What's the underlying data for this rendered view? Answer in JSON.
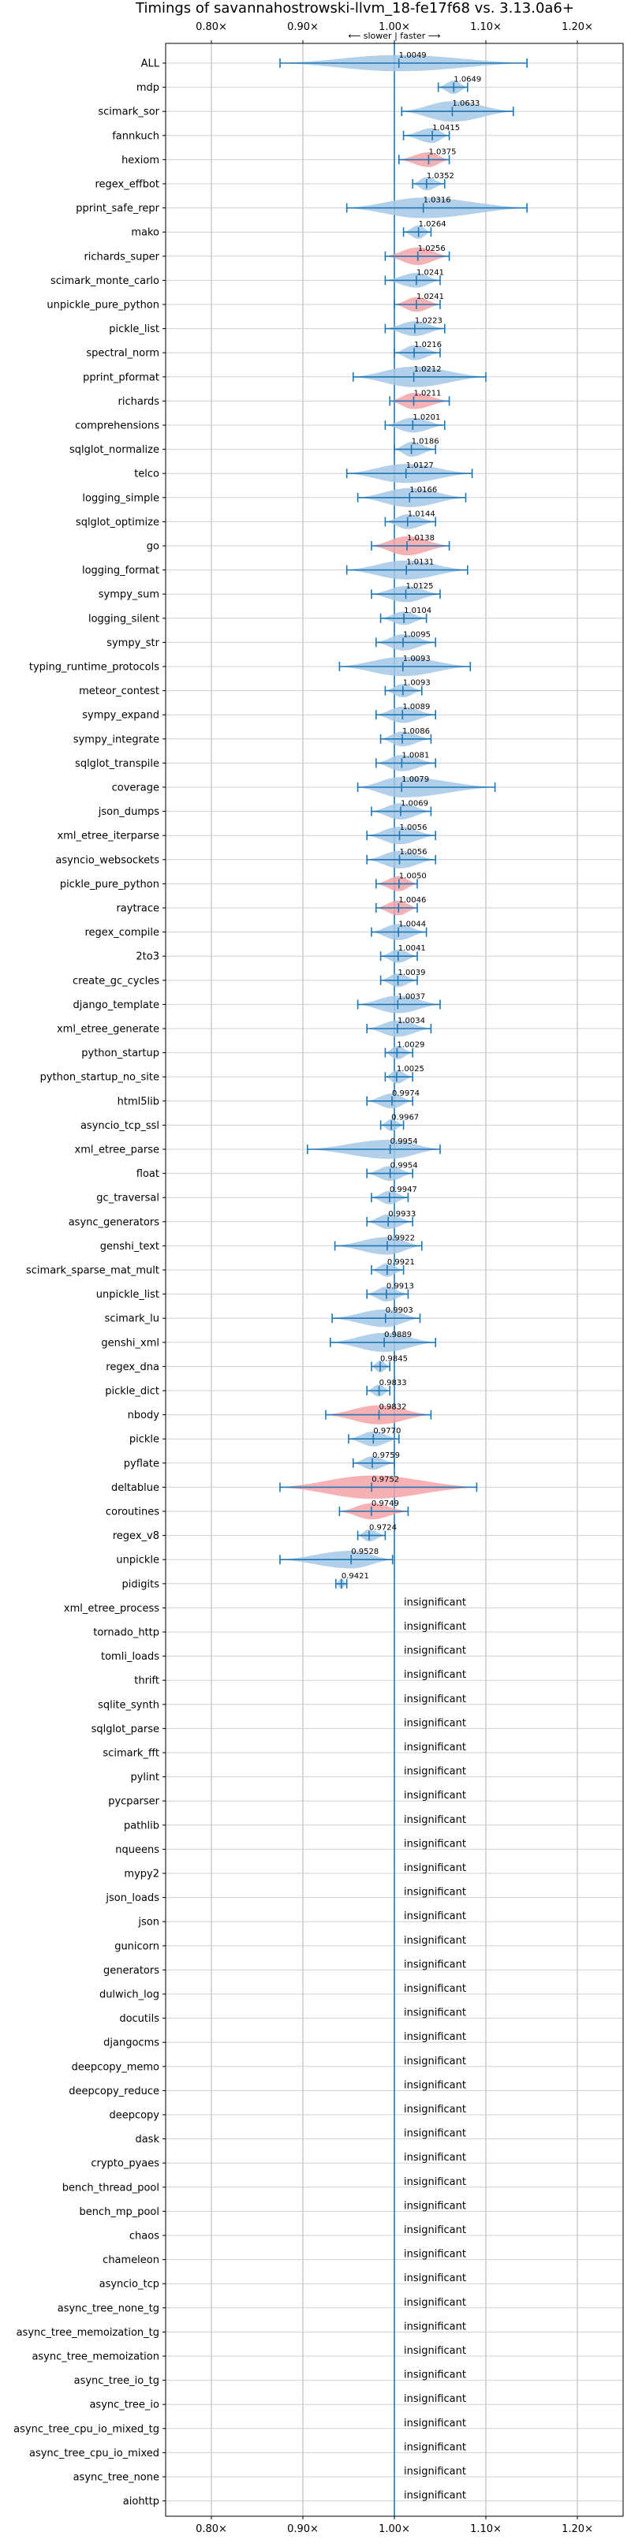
{
  "chart_data": {
    "type": "violin",
    "title": "Timings of savannahostrowski-llvm_18-fe17f68 vs. 3.13.0a6+",
    "direction_note": "⟵ slower | faster ⟶",
    "xlim": [
      0.75,
      1.25
    ],
    "xticks": [
      0.8,
      0.9,
      1.0,
      1.1,
      1.2
    ],
    "xtick_labels": [
      "0.80×",
      "0.90×",
      "1.00×",
      "1.10×",
      "1.20×"
    ],
    "grid": true,
    "colors": {
      "faster": "#1f77b4",
      "faster_fill": "#a6c8e6",
      "slower_fill": "#f5a3a8"
    },
    "insignificant_label": "insignificant",
    "benchmarks": [
      {
        "name": "ALL",
        "value": 1.0049,
        "label": "1.0049",
        "lo": 0.875,
        "hi": 1.145,
        "w": 0.7,
        "color": "blue"
      },
      {
        "name": "mdp",
        "value": 1.0649,
        "label": "1.0649",
        "lo": 1.048,
        "hi": 1.08,
        "w": 0.5,
        "color": "blue"
      },
      {
        "name": "scimark_sor",
        "value": 1.0633,
        "label": "1.0633",
        "lo": 1.008,
        "hi": 1.13,
        "w": 1.0,
        "color": "blue"
      },
      {
        "name": "fannkuch",
        "value": 1.0415,
        "label": "1.0415",
        "lo": 1.01,
        "hi": 1.06,
        "w": 0.6,
        "color": "blue"
      },
      {
        "name": "hexiom",
        "value": 1.0375,
        "label": "1.0375",
        "lo": 1.005,
        "hi": 1.06,
        "w": 0.6,
        "color": "red"
      },
      {
        "name": "regex_effbot",
        "value": 1.0352,
        "label": "1.0352",
        "lo": 1.02,
        "hi": 1.055,
        "w": 0.5,
        "color": "blue"
      },
      {
        "name": "pprint_safe_repr",
        "value": 1.0316,
        "label": "1.0316",
        "lo": 0.948,
        "hi": 1.145,
        "w": 1.0,
        "color": "blue"
      },
      {
        "name": "mako",
        "value": 1.0264,
        "label": "1.0264",
        "lo": 1.01,
        "hi": 1.04,
        "w": 0.5,
        "color": "blue"
      },
      {
        "name": "richards_super",
        "value": 1.0256,
        "label": "1.0256",
        "lo": 0.99,
        "hi": 1.06,
        "w": 0.8,
        "color": "red"
      },
      {
        "name": "scimark_monte_carlo",
        "value": 1.0241,
        "label": "1.0241",
        "lo": 0.99,
        "hi": 1.05,
        "w": 0.6,
        "color": "blue"
      },
      {
        "name": "unpickle_pure_python",
        "value": 1.0241,
        "label": "1.0241",
        "lo": 1.0,
        "hi": 1.05,
        "w": 0.6,
        "color": "red"
      },
      {
        "name": "pickle_list",
        "value": 1.0223,
        "label": "1.0223",
        "lo": 0.99,
        "hi": 1.055,
        "w": 0.6,
        "color": "blue"
      },
      {
        "name": "spectral_norm",
        "value": 1.0216,
        "label": "1.0216",
        "lo": 1.0,
        "hi": 1.05,
        "w": 0.6,
        "color": "blue"
      },
      {
        "name": "pprint_pformat",
        "value": 1.0212,
        "label": "1.0212",
        "lo": 0.955,
        "hi": 1.1,
        "w": 1.0,
        "color": "blue"
      },
      {
        "name": "richards",
        "value": 1.0211,
        "label": "1.0211",
        "lo": 0.995,
        "hi": 1.06,
        "w": 0.7,
        "color": "red"
      },
      {
        "name": "comprehensions",
        "value": 1.0201,
        "label": "1.0201",
        "lo": 0.99,
        "hi": 1.055,
        "w": 0.6,
        "color": "blue"
      },
      {
        "name": "sqlglot_normalize",
        "value": 1.0186,
        "label": "1.0186",
        "lo": 1.0,
        "hi": 1.045,
        "w": 0.6,
        "color": "blue"
      },
      {
        "name": "telco",
        "value": 1.0127,
        "label": "1.0127",
        "lo": 0.948,
        "hi": 1.085,
        "w": 0.9,
        "color": "blue"
      },
      {
        "name": "logging_simple",
        "value": 1.0166,
        "label": "1.0166",
        "lo": 0.96,
        "hi": 1.078,
        "w": 0.9,
        "color": "blue"
      },
      {
        "name": "sqlglot_optimize",
        "value": 1.0144,
        "label": "1.0144",
        "lo": 0.99,
        "hi": 1.045,
        "w": 0.6,
        "color": "blue"
      },
      {
        "name": "go",
        "value": 1.0138,
        "label": "1.0138",
        "lo": 0.975,
        "hi": 1.06,
        "w": 0.9,
        "color": "red"
      },
      {
        "name": "logging_format",
        "value": 1.0131,
        "label": "1.0131",
        "lo": 0.948,
        "hi": 1.08,
        "w": 0.9,
        "color": "blue"
      },
      {
        "name": "sympy_sum",
        "value": 1.0125,
        "label": "1.0125",
        "lo": 0.975,
        "hi": 1.05,
        "w": 0.7,
        "color": "blue"
      },
      {
        "name": "logging_silent",
        "value": 1.0104,
        "label": "1.0104",
        "lo": 0.985,
        "hi": 1.035,
        "w": 0.5,
        "color": "blue"
      },
      {
        "name": "sympy_str",
        "value": 1.0095,
        "label": "1.0095",
        "lo": 0.98,
        "hi": 1.045,
        "w": 0.7,
        "color": "blue"
      },
      {
        "name": "typing_runtime_protocols",
        "value": 1.0093,
        "label": "1.0093",
        "lo": 0.94,
        "hi": 1.083,
        "w": 0.9,
        "color": "blue"
      },
      {
        "name": "meteor_contest",
        "value": 1.0093,
        "label": "1.0093",
        "lo": 0.99,
        "hi": 1.03,
        "w": 0.5,
        "color": "blue"
      },
      {
        "name": "sympy_expand",
        "value": 1.0089,
        "label": "1.0089",
        "lo": 0.98,
        "hi": 1.045,
        "w": 0.7,
        "color": "blue"
      },
      {
        "name": "sympy_integrate",
        "value": 1.0086,
        "label": "1.0086",
        "lo": 0.985,
        "hi": 1.04,
        "w": 0.6,
        "color": "blue"
      },
      {
        "name": "sqlglot_transpile",
        "value": 1.0081,
        "label": "1.0081",
        "lo": 0.98,
        "hi": 1.045,
        "w": 0.7,
        "color": "blue"
      },
      {
        "name": "coverage",
        "value": 1.0079,
        "label": "1.0079",
        "lo": 0.96,
        "hi": 1.11,
        "w": 1.0,
        "color": "blue"
      },
      {
        "name": "json_dumps",
        "value": 1.0069,
        "label": "1.0069",
        "lo": 0.975,
        "hi": 1.04,
        "w": 0.7,
        "color": "blue"
      },
      {
        "name": "xml_etree_iterparse",
        "value": 1.0056,
        "label": "1.0056",
        "lo": 0.97,
        "hi": 1.045,
        "w": 0.8,
        "color": "blue"
      },
      {
        "name": "asyncio_websockets",
        "value": 1.0056,
        "label": "1.0056",
        "lo": 0.97,
        "hi": 1.045,
        "w": 0.8,
        "color": "blue"
      },
      {
        "name": "pickle_pure_python",
        "value": 1.005,
        "label": "1.0050",
        "lo": 0.98,
        "hi": 1.025,
        "w": 0.6,
        "color": "red"
      },
      {
        "name": "raytrace",
        "value": 1.0046,
        "label": "1.0046",
        "lo": 0.98,
        "hi": 1.025,
        "w": 0.6,
        "color": "red"
      },
      {
        "name": "regex_compile",
        "value": 1.0044,
        "label": "1.0044",
        "lo": 0.975,
        "hi": 1.035,
        "w": 0.7,
        "color": "blue"
      },
      {
        "name": "2to3",
        "value": 1.0041,
        "label": "1.0041",
        "lo": 0.985,
        "hi": 1.025,
        "w": 0.5,
        "color": "blue"
      },
      {
        "name": "create_gc_cycles",
        "value": 1.0039,
        "label": "1.0039",
        "lo": 0.985,
        "hi": 1.025,
        "w": 0.5,
        "color": "blue"
      },
      {
        "name": "django_template",
        "value": 1.0037,
        "label": "1.0037",
        "lo": 0.96,
        "hi": 1.05,
        "w": 0.8,
        "color": "blue"
      },
      {
        "name": "xml_etree_generate",
        "value": 1.0034,
        "label": "1.0034",
        "lo": 0.97,
        "hi": 1.04,
        "w": 0.7,
        "color": "blue"
      },
      {
        "name": "python_startup",
        "value": 1.0029,
        "label": "1.0029",
        "lo": 0.99,
        "hi": 1.02,
        "w": 0.5,
        "color": "blue"
      },
      {
        "name": "python_startup_no_site",
        "value": 1.0025,
        "label": "1.0025",
        "lo": 0.99,
        "hi": 1.02,
        "w": 0.5,
        "color": "blue"
      },
      {
        "name": "html5lib",
        "value": 0.9974,
        "label": "0.9974",
        "lo": 0.97,
        "hi": 1.02,
        "w": 0.6,
        "color": "blue"
      },
      {
        "name": "asyncio_tcp_ssl",
        "value": 0.9967,
        "label": "0.9967",
        "lo": 0.985,
        "hi": 1.01,
        "w": 0.4,
        "color": "blue"
      },
      {
        "name": "xml_etree_parse",
        "value": 0.9954,
        "label": "0.9954",
        "lo": 0.905,
        "hi": 1.05,
        "w": 0.9,
        "color": "blue"
      },
      {
        "name": "float",
        "value": 0.9954,
        "label": "0.9954",
        "lo": 0.97,
        "hi": 1.02,
        "w": 0.6,
        "color": "blue"
      },
      {
        "name": "gc_traversal",
        "value": 0.9947,
        "label": "0.9947",
        "lo": 0.975,
        "hi": 1.015,
        "w": 0.5,
        "color": "blue"
      },
      {
        "name": "async_generators",
        "value": 0.9933,
        "label": "0.9933",
        "lo": 0.97,
        "hi": 1.02,
        "w": 0.6,
        "color": "blue"
      },
      {
        "name": "genshi_text",
        "value": 0.9922,
        "label": "0.9922",
        "lo": 0.935,
        "hi": 1.03,
        "w": 0.8,
        "color": "blue"
      },
      {
        "name": "scimark_sparse_mat_mult",
        "value": 0.9921,
        "label": "0.9921",
        "lo": 0.975,
        "hi": 1.01,
        "w": 0.5,
        "color": "blue"
      },
      {
        "name": "unpickle_list",
        "value": 0.9913,
        "label": "0.9913",
        "lo": 0.97,
        "hi": 1.015,
        "w": 0.6,
        "color": "blue"
      },
      {
        "name": "scimark_lu",
        "value": 0.9903,
        "label": "0.9903",
        "lo": 0.932,
        "hi": 1.028,
        "w": 0.8,
        "color": "blue"
      },
      {
        "name": "genshi_xml",
        "value": 0.9889,
        "label": "0.9889",
        "lo": 0.93,
        "hi": 1.045,
        "w": 0.9,
        "color": "blue"
      },
      {
        "name": "regex_dna",
        "value": 0.9845,
        "label": "0.9845",
        "lo": 0.975,
        "hi": 0.995,
        "w": 0.4,
        "color": "blue"
      },
      {
        "name": "pickle_dict",
        "value": 0.9833,
        "label": "0.9833",
        "lo": 0.97,
        "hi": 0.995,
        "w": 0.4,
        "color": "blue"
      },
      {
        "name": "nbody",
        "value": 0.9832,
        "label": "0.9832",
        "lo": 0.925,
        "hi": 1.04,
        "w": 0.9,
        "color": "red"
      },
      {
        "name": "pickle",
        "value": 0.977,
        "label": "0.9770",
        "lo": 0.95,
        "hi": 1.005,
        "w": 0.6,
        "color": "blue"
      },
      {
        "name": "pyflate",
        "value": 0.9759,
        "label": "0.9759",
        "lo": 0.955,
        "hi": 1.0,
        "w": 0.5,
        "color": "blue"
      },
      {
        "name": "deltablue",
        "value": 0.9752,
        "label": "0.9752",
        "lo": 0.875,
        "hi": 1.09,
        "w": 1.2,
        "color": "red"
      },
      {
        "name": "coroutines",
        "value": 0.9749,
        "label": "0.9749",
        "lo": 0.94,
        "hi": 1.015,
        "w": 0.7,
        "color": "red"
      },
      {
        "name": "regex_v8",
        "value": 0.9724,
        "label": "0.9724",
        "lo": 0.96,
        "hi": 0.99,
        "w": 0.4,
        "color": "blue"
      },
      {
        "name": "unpickle",
        "value": 0.9528,
        "label": "0.9528",
        "lo": 0.875,
        "hi": 0.998,
        "w": 0.8,
        "color": "blue"
      },
      {
        "name": "pidigits",
        "value": 0.9421,
        "label": "0.9421",
        "lo": 0.936,
        "hi": 0.948,
        "w": 0.3,
        "color": "blue"
      },
      {
        "name": "xml_etree_process",
        "insignificant": true
      },
      {
        "name": "tornado_http",
        "insignificant": true
      },
      {
        "name": "tomli_loads",
        "insignificant": true
      },
      {
        "name": "thrift",
        "insignificant": true
      },
      {
        "name": "sqlite_synth",
        "insignificant": true
      },
      {
        "name": "sqlglot_parse",
        "insignificant": true
      },
      {
        "name": "scimark_fft",
        "insignificant": true
      },
      {
        "name": "pylint",
        "insignificant": true
      },
      {
        "name": "pycparser",
        "insignificant": true
      },
      {
        "name": "pathlib",
        "insignificant": true
      },
      {
        "name": "nqueens",
        "insignificant": true
      },
      {
        "name": "mypy2",
        "insignificant": true
      },
      {
        "name": "json_loads",
        "insignificant": true
      },
      {
        "name": "json",
        "insignificant": true
      },
      {
        "name": "gunicorn",
        "insignificant": true
      },
      {
        "name": "generators",
        "insignificant": true
      },
      {
        "name": "dulwich_log",
        "insignificant": true
      },
      {
        "name": "docutils",
        "insignificant": true
      },
      {
        "name": "djangocms",
        "insignificant": true
      },
      {
        "name": "deepcopy_memo",
        "insignificant": true
      },
      {
        "name": "deepcopy_reduce",
        "insignificant": true
      },
      {
        "name": "deepcopy",
        "insignificant": true
      },
      {
        "name": "dask",
        "insignificant": true
      },
      {
        "name": "crypto_pyaes",
        "insignificant": true
      },
      {
        "name": "bench_thread_pool",
        "insignificant": true
      },
      {
        "name": "bench_mp_pool",
        "insignificant": true
      },
      {
        "name": "chaos",
        "insignificant": true
      },
      {
        "name": "chameleon",
        "insignificant": true
      },
      {
        "name": "asyncio_tcp",
        "insignificant": true
      },
      {
        "name": "async_tree_none_tg",
        "insignificant": true
      },
      {
        "name": "async_tree_memoization_tg",
        "insignificant": true
      },
      {
        "name": "async_tree_memoization",
        "insignificant": true
      },
      {
        "name": "async_tree_io_tg",
        "insignificant": true
      },
      {
        "name": "async_tree_io",
        "insignificant": true
      },
      {
        "name": "async_tree_cpu_io_mixed_tg",
        "insignificant": true
      },
      {
        "name": "async_tree_cpu_io_mixed",
        "insignificant": true
      },
      {
        "name": "async_tree_none",
        "insignificant": true
      },
      {
        "name": "aiohttp",
        "insignificant": true
      }
    ]
  }
}
